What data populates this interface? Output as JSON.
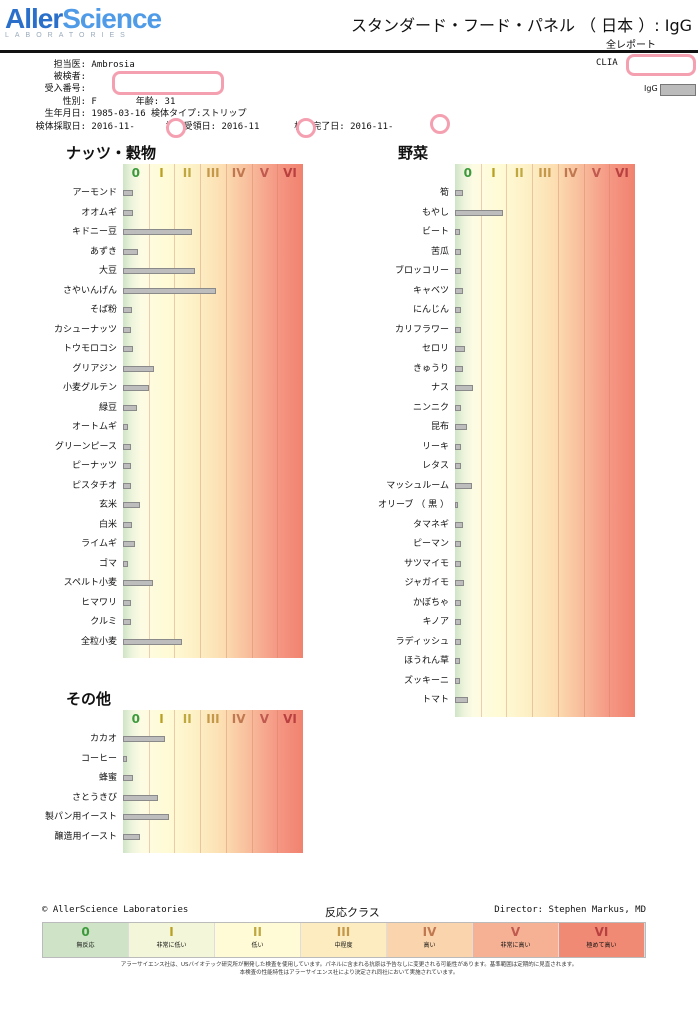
{
  "header": {
    "brand_main": "Aller",
    "brand_accent": "Science",
    "brand_sub": "LABORATORIES",
    "title": "スタンダード・フード・パネル （ 日本 ）: IgG",
    "subtitle": "全レポート",
    "clia_label": "CLIA",
    "igg_label": "IgG"
  },
  "patient": {
    "doctor_label": "担当医:",
    "doctor": "Ambrosia",
    "subject_label": "被検者:",
    "accession_label": "受入番号:",
    "sex_label": "性別:",
    "sex": "F",
    "age_label": "年齢:",
    "age": "31",
    "dob_label": "生年月日:",
    "dob": "1985-03-16",
    "specimen_label": "検体タイプ:",
    "specimen": "ストリップ",
    "collected_label": "検体採取日:",
    "collected": "2016-11-",
    "received_label": "検体受領日:",
    "received": "2016-11",
    "completed_label": "検査完了日:",
    "completed": "2016-11-"
  },
  "classes": [
    "0",
    "I",
    "II",
    "III",
    "IV",
    "V",
    "VI"
  ],
  "class_colors": [
    "#3c9a3c",
    "#b8a020",
    "#c0a840",
    "#c49848",
    "#c07850",
    "#c05a50",
    "#b84040"
  ],
  "sections": {
    "nuts": {
      "title": "ナッツ・穀物",
      "items": [
        {
          "name": "アーモンド",
          "level": 0.4
        },
        {
          "name": "オオムギ",
          "level": 0.4
        },
        {
          "name": "キドニー豆",
          "level": 2.7
        },
        {
          "name": "あずき",
          "level": 0.6
        },
        {
          "name": "大豆",
          "level": 2.8
        },
        {
          "name": "さやいんげん",
          "level": 3.6
        },
        {
          "name": "そば粉",
          "level": 0.35
        },
        {
          "name": "カシューナッツ",
          "level": 0.3
        },
        {
          "name": "トウモロコシ",
          "level": 0.4
        },
        {
          "name": "グリアジン",
          "level": 1.2
        },
        {
          "name": "小麦グルテン",
          "level": 1.0
        },
        {
          "name": "緑豆",
          "level": 0.55
        },
        {
          "name": "オートムギ",
          "level": 0.2
        },
        {
          "name": "グリーンピース",
          "level": 0.3
        },
        {
          "name": "ピーナッツ",
          "level": 0.3
        },
        {
          "name": "ピスタチオ",
          "level": 0.3
        },
        {
          "name": "玄米",
          "level": 0.65
        },
        {
          "name": "白米",
          "level": 0.35
        },
        {
          "name": "ライムギ",
          "level": 0.45
        },
        {
          "name": "ゴマ",
          "level": 0.2
        },
        {
          "name": "スペルト小麦",
          "level": 1.15
        },
        {
          "name": "ヒマワリ",
          "level": 0.3
        },
        {
          "name": "クルミ",
          "level": 0.3
        },
        {
          "name": "全粒小麦",
          "level": 2.3
        }
      ]
    },
    "other": {
      "title": "その他",
      "items": [
        {
          "name": "カカオ",
          "level": 1.65
        },
        {
          "name": "コーヒー",
          "level": 0.15
        },
        {
          "name": "蜂蜜",
          "level": 0.4
        },
        {
          "name": "さとうきび",
          "level": 1.35
        },
        {
          "name": "製パン用イースト",
          "level": 1.8
        },
        {
          "name": "醸造用イースト",
          "level": 0.65
        }
      ]
    },
    "veg": {
      "title": "野菜",
      "items": [
        {
          "name": "筍",
          "level": 0.3
        },
        {
          "name": "もやし",
          "level": 1.85
        },
        {
          "name": "ビート",
          "level": 0.2
        },
        {
          "name": "苦瓜",
          "level": 0.25
        },
        {
          "name": "ブロッコリー",
          "level": 0.25
        },
        {
          "name": "キャベツ",
          "level": 0.3
        },
        {
          "name": "にんじん",
          "level": 0.25
        },
        {
          "name": "カリフラワー",
          "level": 0.25
        },
        {
          "name": "セロリ",
          "level": 0.4
        },
        {
          "name": "きゅうり",
          "level": 0.3
        },
        {
          "name": "ナス",
          "level": 0.7
        },
        {
          "name": "ニンニク",
          "level": 0.25
        },
        {
          "name": "昆布",
          "level": 0.45
        },
        {
          "name": "リーキ",
          "level": 0.25
        },
        {
          "name": "レタス",
          "level": 0.25
        },
        {
          "name": "マッシュルーム",
          "level": 0.65
        },
        {
          "name": "オリーブ （ 黒 ）",
          "level": 0.05
        },
        {
          "name": "タマネギ",
          "level": 0.3
        },
        {
          "name": "ピーマン",
          "level": 0.25
        },
        {
          "name": "サツマイモ",
          "level": 0.25
        },
        {
          "name": "ジャガイモ",
          "level": 0.35
        },
        {
          "name": "かぼちゃ",
          "level": 0.25
        },
        {
          "name": "キノア",
          "level": 0.25
        },
        {
          "name": "ラディッシュ",
          "level": 0.25
        },
        {
          "name": "ほうれん草",
          "level": 0.2
        },
        {
          "name": "ズッキーニ",
          "level": 0.2
        },
        {
          "name": "トマト",
          "level": 0.5
        }
      ]
    }
  },
  "footer": {
    "copyright": "© AllerScience Laboratories",
    "legend_title": "反応クラス",
    "director": "Director: Stephen Markus, MD",
    "legend": [
      {
        "cls": "0",
        "desc": "無反応",
        "color": "#cfe4c6"
      },
      {
        "cls": "I",
        "desc": "非常に低い",
        "color": "#f3f6d8"
      },
      {
        "cls": "II",
        "desc": "低い",
        "color": "#fffbd6"
      },
      {
        "cls": "III",
        "desc": "中程度",
        "color": "#fcecc0"
      },
      {
        "cls": "IV",
        "desc": "高い",
        "color": "#fad4ac"
      },
      {
        "cls": "V",
        "desc": "非常に高い",
        "color": "#f6b094"
      },
      {
        "cls": "VI",
        "desc": "極めて高い",
        "color": "#f08a74"
      }
    ],
    "note1": "アラーサイエンス社は、USバイオテック研究所が開発した検査を使用しています。パネルに含まれる抗原は予告なしに変更される可能性があります。基準範囲は定期的に見直されます。",
    "note2": "本検査の性能特性はアラーサイエンス社により決定され同社において実施されています。"
  }
}
